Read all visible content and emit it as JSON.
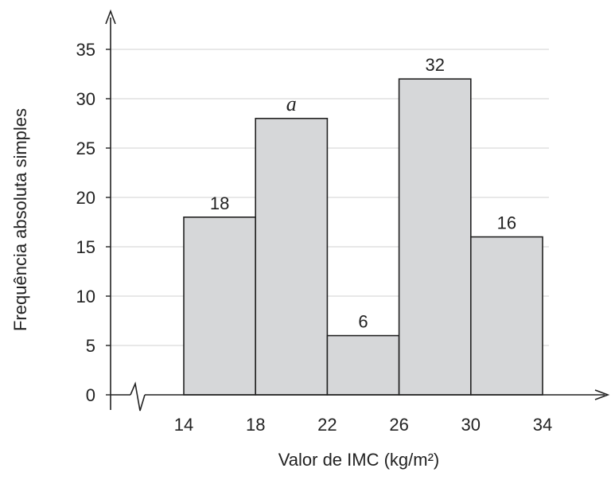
{
  "chart_data": {
    "type": "bar",
    "bins": [
      {
        "from": 14,
        "to": 18,
        "value": 18,
        "label": "18"
      },
      {
        "from": 18,
        "to": 22,
        "value": 28,
        "label": "a"
      },
      {
        "from": 22,
        "to": 26,
        "value": 6,
        "label": "6"
      },
      {
        "from": 26,
        "to": 30,
        "value": 32,
        "label": "32"
      },
      {
        "from": 30,
        "to": 34,
        "value": 16,
        "label": "16"
      }
    ],
    "x_ticks": [
      14,
      18,
      22,
      26,
      30,
      34
    ],
    "y_ticks": [
      0,
      5,
      10,
      15,
      20,
      25,
      30,
      35
    ],
    "xlabel": "Valor de IMC (kg/m²)",
    "ylabel": "Frequência absoluta simples",
    "ylim": [
      0,
      35
    ],
    "grid": true,
    "colors": {
      "bar_fill": "#d6d7d9",
      "bar_stroke": "#222222",
      "grid": "#d9d9d9",
      "axis": "#222222"
    }
  }
}
